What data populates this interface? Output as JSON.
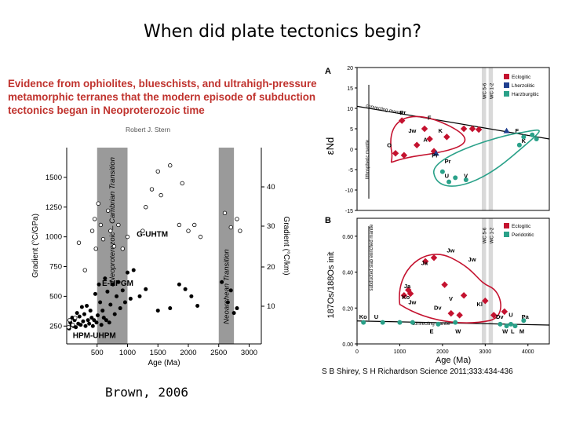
{
  "slide": {
    "title": "When did plate tectonics begin?",
    "credit_left": "Brown, 2006",
    "credit_right": "S B Shirey, S H Richardson Science 2011;333:434-436"
  },
  "paper": {
    "header": "Evidence from ophiolites, blueschists, and ultrahigh-pressure metamorphic terranes that the modern episode of subduction tectonics began in Neoproterozoic time",
    "author": "Robert J. Stern"
  },
  "colors": {
    "eclogitic": "#c4122f",
    "lherzolitic": "#1f3f8f",
    "harzburgitic": "#2aa189",
    "band": "#9a9a9a",
    "paper_header": "#c0332e"
  },
  "chart_data": [
    {
      "type": "scatter",
      "panel": "left",
      "xlabel": "Age (Ma)",
      "ylabel": "Gradient (°C/GPa)",
      "ylabel_right": "Gradient (°C/km)",
      "xlim": [
        0,
        3200
      ],
      "ylim": [
        100,
        1750
      ],
      "xticks": [
        500,
        1000,
        1500,
        2000,
        2500,
        3000
      ],
      "yticks": [
        250,
        500,
        750,
        1000,
        1250,
        1500
      ],
      "yticks_right": [
        10,
        20,
        30,
        40
      ],
      "bands": [
        {
          "x0": 500,
          "x1": 1000,
          "label": "Neoproterozoic – Cambrian Transition"
        },
        {
          "x0": 2500,
          "x1": 2750,
          "label": "Neoarchean Transition"
        }
      ],
      "labels": [
        {
          "text": "G-UHTM",
          "x": 1150,
          "y": 1000
        },
        {
          "text": "E-HPGM",
          "x": 580,
          "y": 590
        },
        {
          "text": "HPM-UHPM",
          "x": 100,
          "y": 150
        }
      ],
      "series": [
        {
          "marker": "filled",
          "points": [
            [
              40,
              230
            ],
            [
              60,
              280
            ],
            [
              80,
              260
            ],
            [
              90,
              320
            ],
            [
              110,
              250
            ],
            [
              130,
              300
            ],
            [
              150,
              240
            ],
            [
              170,
              360
            ],
            [
              190,
              270
            ],
            [
              210,
              330
            ],
            [
              230,
              260
            ],
            [
              250,
              410
            ],
            [
              270,
              290
            ],
            [
              290,
              350
            ],
            [
              310,
              250
            ],
            [
              330,
              420
            ],
            [
              350,
              300
            ],
            [
              370,
              270
            ],
            [
              390,
              380
            ],
            [
              410,
              320
            ],
            [
              430,
              250
            ],
            [
              450,
              300
            ],
            [
              470,
              520
            ],
            [
              490,
              280
            ],
            [
              510,
              340
            ],
            [
              530,
              600
            ],
            [
              550,
              450
            ],
            [
              570,
              260
            ],
            [
              590,
              380
            ],
            [
              610,
              320
            ],
            [
              630,
              650
            ],
            [
              650,
              300
            ],
            [
              670,
              540
            ],
            [
              700,
              280
            ],
            [
              720,
              430
            ],
            [
              760,
              600
            ],
            [
              790,
              350
            ],
            [
              820,
              500
            ],
            [
              850,
              620
            ],
            [
              880,
              400
            ],
            [
              920,
              550
            ],
            [
              960,
              450
            ],
            [
              1000,
              700
            ],
            [
              1050,
              480
            ],
            [
              1100,
              720
            ],
            [
              1200,
              500
            ],
            [
              1300,
              560
            ],
            [
              1500,
              380
            ],
            [
              1700,
              400
            ],
            [
              1850,
              600
            ],
            [
              1950,
              560
            ],
            [
              2050,
              500
            ],
            [
              2150,
              420
            ],
            [
              2550,
              620
            ],
            [
              2650,
              450
            ],
            [
              2700,
              550
            ],
            [
              2750,
              360
            ],
            [
              2800,
              400
            ]
          ]
        },
        {
          "marker": "open",
          "points": [
            [
              30,
              240
            ],
            [
              50,
              300
            ],
            [
              100,
              260
            ],
            [
              140,
              320
            ],
            [
              200,
              950
            ],
            [
              300,
              720
            ],
            [
              420,
              1050
            ],
            [
              460,
              1150
            ],
            [
              480,
              900
            ],
            [
              520,
              1280
            ],
            [
              560,
              1100
            ],
            [
              600,
              980
            ],
            [
              680,
              1220
            ],
            [
              720,
              1050
            ],
            [
              780,
              920
            ],
            [
              850,
              1100
            ],
            [
              920,
              900
            ],
            [
              1000,
              1000
            ],
            [
              1250,
              1050
            ],
            [
              1300,
              1250
            ],
            [
              1400,
              1400
            ],
            [
              1500,
              1550
            ],
            [
              1550,
              1350
            ],
            [
              1700,
              1600
            ],
            [
              1850,
              1100
            ],
            [
              1900,
              1450
            ],
            [
              2000,
              1050
            ],
            [
              2100,
              1100
            ],
            [
              2200,
              1000
            ],
            [
              2600,
              1200
            ],
            [
              2700,
              1080
            ],
            [
              2800,
              1150
            ],
            [
              2850,
              1050
            ]
          ]
        }
      ]
    },
    {
      "type": "scatter",
      "panel": "A",
      "ylabel": "εNd",
      "ylim": [
        -15,
        20
      ],
      "yticks": [
        20,
        15,
        10,
        5,
        0,
        -5,
        -10,
        -15
      ],
      "xlim": [
        0,
        4500
      ],
      "legend": [
        "Eclogitic",
        "Lherzolitic",
        "Harzburgitic"
      ],
      "legend_position": "top-right",
      "band_labels": [
        "WC 5-6",
        "WC 1-2"
      ],
      "annotations": [
        "convecting mantle",
        "lithospheric mantle"
      ],
      "groups": [
        {
          "color": "eclogitic",
          "labels": [
            "Pr",
            "F",
            "Jw",
            "K",
            "O",
            "A",
            "Pr"
          ],
          "points": [
            [
              1050,
              7
            ],
            [
              1580,
              5
            ],
            [
              1700,
              2.5
            ],
            [
              2100,
              3
            ],
            [
              900,
              -1
            ],
            [
              1400,
              1
            ],
            [
              1800,
              -0.5
            ],
            [
              2500,
              5
            ],
            [
              2700,
              5
            ],
            [
              2850,
              4.8
            ],
            [
              1100,
              -1.5
            ]
          ]
        },
        {
          "color": "lherzolitic",
          "points": [
            [
              1850,
              -1
            ],
            [
              3500,
              4.5
            ]
          ]
        },
        {
          "color": "harzburgitic",
          "labels": [
            "Pr",
            "U",
            "V",
            "F",
            "K"
          ],
          "points": [
            [
              2000,
              -5.5
            ],
            [
              2150,
              -8
            ],
            [
              2300,
              -7
            ],
            [
              2550,
              -7.5
            ],
            [
              3800,
              1
            ],
            [
              3900,
              3
            ],
            [
              4100,
              3.5
            ],
            [
              4200,
              2.5
            ]
          ]
        }
      ]
    },
    {
      "type": "scatter",
      "panel": "B",
      "xlabel": "Age (Ma)",
      "ylabel": "187Os/188Os init",
      "xlim": [
        0,
        4500
      ],
      "ylim": [
        0.0,
        0.7
      ],
      "xticks": [
        0,
        1000,
        2000,
        3000,
        4000
      ],
      "yticks": [
        0.0,
        0.2,
        0.4,
        0.6
      ],
      "legend": [
        "Eclogitic",
        "Peridotitic"
      ],
      "legend_position": "top-right",
      "band_labels": [
        "WC 5-6",
        "WC 1-2"
      ],
      "annotations": [
        "subducted slab enriched mantle",
        "convecting mantle"
      ],
      "groups": [
        {
          "color": "eclogitic",
          "labels": [
            "Ja",
            "Jw",
            "Ja",
            "Ko",
            "Jw",
            "V",
            "Dv",
            "Kl",
            "E",
            "W",
            "Dv"
          ],
          "points": [
            [
              1100,
              0.27
            ],
            [
              1200,
              0.3
            ],
            [
              1250,
              0.28
            ],
            [
              1600,
              0.46
            ],
            [
              1800,
              0.48
            ],
            [
              2050,
              0.33
            ],
            [
              2500,
              0.27
            ],
            [
              3000,
              0.24
            ],
            [
              2200,
              0.17
            ],
            [
              2400,
              0.16
            ],
            [
              3200,
              0.16
            ],
            [
              3450,
              0.18
            ]
          ]
        },
        {
          "color": "harzburgitic",
          "labels": [
            "Ko",
            "U",
            "U",
            "Pa",
            "Kl",
            "W",
            "L",
            "M"
          ],
          "points": [
            [
              150,
              0.12
            ],
            [
              600,
              0.12
            ],
            [
              1000,
              0.12
            ],
            [
              1300,
              0.12
            ],
            [
              1900,
              0.11
            ],
            [
              2300,
              0.12
            ],
            [
              3350,
              0.11
            ],
            [
              3500,
              0.1
            ],
            [
              3600,
              0.11
            ],
            [
              3700,
              0.1
            ],
            [
              3900,
              0.13
            ]
          ]
        }
      ]
    }
  ]
}
